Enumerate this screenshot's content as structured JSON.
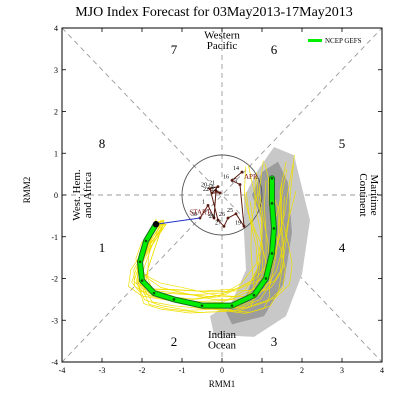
{
  "chart_data": {
    "type": "line",
    "title": "MJO Index Forecast for 03May2013-17May2013",
    "xlabel": "RMM1",
    "ylabel": "RMM2",
    "xlim": [
      -4,
      4
    ],
    "ylim": [
      -4,
      4
    ],
    "xticks": [
      "-4",
      "-3",
      "-2",
      "-1",
      "0",
      "1",
      "2",
      "3",
      "4"
    ],
    "yticks": [
      "-4",
      "-3",
      "-2",
      "-1",
      "0",
      "1",
      "2",
      "3",
      "4"
    ],
    "grid": false,
    "legend_position": "top-right",
    "phase_labels": [
      {
        "label": "1",
        "x": -3.0,
        "y": -1.25
      },
      {
        "label": "2",
        "x": -1.2,
        "y": -3.5
      },
      {
        "label": "3",
        "x": 1.3,
        "y": -3.5
      },
      {
        "label": "4",
        "x": 3.0,
        "y": -1.25
      },
      {
        "label": "5",
        "x": 3.0,
        "y": 1.25
      },
      {
        "label": "6",
        "x": 1.3,
        "y": 3.5
      },
      {
        "label": "7",
        "x": -1.2,
        "y": 3.5
      },
      {
        "label": "8",
        "x": -3.0,
        "y": 1.25
      }
    ],
    "region_labels": {
      "top": [
        "Western",
        "Pacific"
      ],
      "bottom": [
        "Indian",
        "Ocean"
      ],
      "right": [
        "Maritime",
        "Continent"
      ],
      "left": [
        "West. Hem.",
        "and Africa"
      ]
    },
    "observed": {
      "color": "#5a1a10",
      "start_label": "START",
      "end_label": "APR",
      "points": [
        {
          "x": -0.55,
          "y": -0.55,
          "day": "30"
        },
        {
          "x": -0.35,
          "y": -0.25,
          "day": "1"
        },
        {
          "x": -0.2,
          "y": -0.55,
          "day": "2"
        },
        {
          "x": -0.15,
          "y": 0.1,
          "day": "24"
        },
        {
          "x": -0.05,
          "y": 0.05,
          "day": "23"
        },
        {
          "x": -0.25,
          "y": 0.05,
          "day": "22"
        },
        {
          "x": -0.1,
          "y": 0.2,
          "day": "21"
        },
        {
          "x": -0.3,
          "y": 0.15,
          "day": "20"
        },
        {
          "x": -0.1,
          "y": -0.6,
          "day": "28"
        },
        {
          "x": 0.05,
          "y": -0.75,
          "day": "27"
        },
        {
          "x": 0.15,
          "y": -0.55,
          "day": "26"
        },
        {
          "x": 0.35,
          "y": -0.45,
          "day": "25"
        },
        {
          "x": 0.55,
          "y": -0.75,
          "day": "19"
        },
        {
          "x": 0.45,
          "y": 0.25,
          "day": "15"
        },
        {
          "x": 0.25,
          "y": 0.35,
          "day": "16"
        },
        {
          "x": 0.5,
          "y": 0.55,
          "day": "14"
        }
      ]
    },
    "series": [
      {
        "name": "NCEP GEFS",
        "color": "#00ee00",
        "values": [
          {
            "x": -1.65,
            "y": -0.7
          },
          {
            "x": -1.9,
            "y": -1.1
          },
          {
            "x": -2.05,
            "y": -1.6
          },
          {
            "x": -2.0,
            "y": -2.05
          },
          {
            "x": -1.7,
            "y": -2.35
          },
          {
            "x": -1.2,
            "y": -2.5
          },
          {
            "x": -0.5,
            "y": -2.65
          },
          {
            "x": 0.25,
            "y": -2.65
          },
          {
            "x": 0.8,
            "y": -2.4
          },
          {
            "x": 1.1,
            "y": -2.0
          },
          {
            "x": 1.25,
            "y": -1.4
          },
          {
            "x": 1.3,
            "y": -0.8
          },
          {
            "x": 1.25,
            "y": -0.2
          },
          {
            "x": 1.25,
            "y": 0.4
          }
        ]
      }
    ],
    "ensemble_members": 20,
    "uncertainty_bands": [
      "90%",
      "50%"
    ]
  }
}
